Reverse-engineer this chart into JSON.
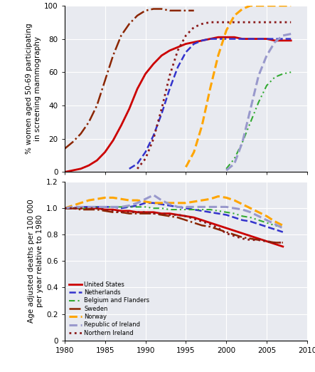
{
  "top_panel": {
    "ylabel": "% women aged 50-69 participating\nin screening mammography",
    "ylim": [
      0,
      100
    ],
    "xlim": [
      1980,
      2010
    ],
    "yticks": [
      0,
      20,
      40,
      60,
      80,
      100
    ],
    "bg_color": "#e8eaf0",
    "series": [
      {
        "name": "United States",
        "color": "#cc0000",
        "linestyle": "-",
        "linewidth": 2.0,
        "x": [
          1980,
          1981,
          1982,
          1983,
          1984,
          1985,
          1986,
          1987,
          1988,
          1989,
          1990,
          1991,
          1992,
          1993,
          1994,
          1995,
          1996,
          1997,
          1998,
          1999,
          2000,
          2001,
          2002,
          2003,
          2004,
          2005,
          2006,
          2007,
          2008
        ],
        "y": [
          0,
          1,
          2,
          4,
          7,
          12,
          19,
          28,
          38,
          50,
          59,
          65,
          70,
          73,
          75,
          77,
          78,
          79,
          80,
          81,
          81,
          81,
          80,
          80,
          80,
          80,
          79,
          79,
          79
        ]
      },
      {
        "name": "Netherlands",
        "color": "#3333cc",
        "linestyle": "--",
        "linewidth": 1.8,
        "x": [
          1988,
          1989,
          1990,
          1991,
          1992,
          1993,
          1994,
          1995,
          1996,
          1997,
          1998,
          1999,
          2000,
          2001,
          2002,
          2003,
          2004,
          2005,
          2006,
          2007,
          2008
        ],
        "y": [
          2,
          5,
          12,
          22,
          35,
          50,
          63,
          72,
          77,
          79,
          80,
          80,
          80,
          80,
          80,
          80,
          80,
          80,
          80,
          80,
          80
        ]
      },
      {
        "name": "Belgium and Flanders",
        "color": "#33aa33",
        "linestyle": "--",
        "linewidth": 1.5,
        "dashes": [
          4,
          2,
          1,
          2,
          1,
          2
        ],
        "x": [
          2000,
          2001,
          2002,
          2003,
          2004,
          2005,
          2006,
          2007,
          2008
        ],
        "y": [
          2,
          8,
          18,
          30,
          42,
          52,
          57,
          59,
          60
        ]
      },
      {
        "name": "Sweden",
        "color": "#8B2500",
        "linestyle": "-.",
        "linewidth": 1.8,
        "x": [
          1980,
          1981,
          1982,
          1983,
          1984,
          1985,
          1986,
          1987,
          1988,
          1989,
          1990,
          1991,
          1992,
          1993,
          1994,
          1995,
          1996
        ],
        "y": [
          14,
          18,
          23,
          30,
          40,
          55,
          70,
          82,
          89,
          94,
          97,
          98,
          98,
          97,
          97,
          97,
          97
        ]
      },
      {
        "name": "Norway",
        "color": "#FFA500",
        "linestyle": "--",
        "linewidth": 2.2,
        "x": [
          1995,
          1996,
          1997,
          1998,
          1999,
          2000,
          2001,
          2002,
          2003,
          2004,
          2005,
          2006,
          2007,
          2008
        ],
        "y": [
          3,
          12,
          28,
          50,
          70,
          85,
          94,
          98,
          100,
          100,
          100,
          100,
          100,
          100
        ]
      },
      {
        "name": "Republic of Ireland",
        "color": "#9999cc",
        "linestyle": "--",
        "linewidth": 2.2,
        "x": [
          2000,
          2001,
          2002,
          2003,
          2004,
          2005,
          2006,
          2007,
          2008
        ],
        "y": [
          1,
          5,
          18,
          38,
          58,
          70,
          78,
          82,
          83
        ]
      },
      {
        "name": "Northern Ireland",
        "color": "#8B1A1A",
        "linestyle": ":",
        "linewidth": 2.0,
        "x": [
          1989,
          1990,
          1991,
          1992,
          1993,
          1994,
          1995,
          1996,
          1997,
          1998,
          1999,
          2000,
          2001,
          2002,
          2003,
          2004,
          2005,
          2006,
          2007,
          2008
        ],
        "y": [
          2,
          8,
          20,
          38,
          58,
          73,
          82,
          87,
          89,
          90,
          90,
          90,
          90,
          90,
          90,
          90,
          90,
          90,
          90,
          90
        ]
      }
    ]
  },
  "bottom_panel": {
    "ylabel": "Age adjusted deaths per 100 000\nper year relative to 1980",
    "ylim": [
      0,
      1.2
    ],
    "xlim": [
      1980,
      2010
    ],
    "yticks": [
      0,
      0.2,
      0.4,
      0.6,
      0.8,
      1.0,
      1.2
    ],
    "xticks": [
      1980,
      1985,
      1990,
      1995,
      2000,
      2005,
      2010
    ],
    "bg_color": "#e8eaf0",
    "legend": {
      "entries": [
        {
          "name": "United States",
          "color": "#cc0000",
          "linestyle": "-",
          "linewidth": 2.0
        },
        {
          "name": "Netherlands",
          "color": "#3333cc",
          "linestyle": "--",
          "linewidth": 1.8
        },
        {
          "name": "Belgium and Flanders",
          "color": "#33aa33",
          "linestyle": "-.",
          "linewidth": 1.5,
          "dashes": [
            4,
            2,
            1,
            2,
            1,
            2
          ]
        },
        {
          "name": "Sweden",
          "color": "#8B2500",
          "linestyle": "-.",
          "linewidth": 1.8
        },
        {
          "name": "Norway",
          "color": "#FFA500",
          "linestyle": "--",
          "linewidth": 2.2
        },
        {
          "name": "Republic of Ireland",
          "color": "#9999cc",
          "linestyle": "--",
          "linewidth": 2.2
        },
        {
          "name": "Northern Ireland",
          "color": "#8B1A1A",
          "linestyle": ":",
          "linewidth": 2.0
        }
      ]
    },
    "series": [
      {
        "name": "United States",
        "color": "#cc0000",
        "linestyle": "-",
        "linewidth": 2.0,
        "x": [
          1980,
          1981,
          1982,
          1983,
          1984,
          1985,
          1986,
          1987,
          1988,
          1989,
          1990,
          1991,
          1992,
          1993,
          1994,
          1995,
          1996,
          1997,
          1998,
          1999,
          2000,
          2001,
          2002,
          2003,
          2004,
          2005,
          2006,
          2007
        ],
        "y": [
          1.0,
          1.0,
          1.0,
          1.0,
          1.0,
          0.99,
          0.99,
          0.98,
          0.98,
          0.97,
          0.97,
          0.97,
          0.96,
          0.96,
          0.95,
          0.94,
          0.93,
          0.91,
          0.89,
          0.87,
          0.85,
          0.83,
          0.81,
          0.79,
          0.77,
          0.75,
          0.73,
          0.71
        ]
      },
      {
        "name": "Netherlands",
        "color": "#3333cc",
        "linestyle": "--",
        "linewidth": 1.8,
        "x": [
          1980,
          1981,
          1982,
          1983,
          1984,
          1985,
          1986,
          1987,
          1988,
          1989,
          1990,
          1991,
          1992,
          1993,
          1994,
          1995,
          1996,
          1997,
          1998,
          1999,
          2000,
          2001,
          2002,
          2003,
          2004,
          2005,
          2006,
          2007
        ],
        "y": [
          1.0,
          1.0,
          1.01,
          1.01,
          1.01,
          1.01,
          1.01,
          1.0,
          1.01,
          1.02,
          1.04,
          1.04,
          1.03,
          1.02,
          1.01,
          1.0,
          0.99,
          0.98,
          0.97,
          0.96,
          0.95,
          0.93,
          0.91,
          0.9,
          0.88,
          0.86,
          0.84,
          0.82
        ]
      },
      {
        "name": "Belgium and Flanders",
        "color": "#33aa33",
        "linestyle": "-.",
        "linewidth": 1.5,
        "dashes": [
          4,
          2,
          1,
          2,
          1,
          2
        ],
        "x": [
          1980,
          1981,
          1982,
          1983,
          1984,
          1985,
          1986,
          1987,
          1988,
          1989,
          1990,
          1991,
          1992,
          1993,
          1994,
          1995,
          1996,
          1997,
          1998,
          1999,
          2000,
          2001,
          2002,
          2003,
          2004,
          2005,
          2006,
          2007
        ],
        "y": [
          1.0,
          1.0,
          1.0,
          1.0,
          1.01,
          1.01,
          1.01,
          1.01,
          1.01,
          1.01,
          1.01,
          1.0,
          1.0,
          0.99,
          0.99,
          0.99,
          0.99,
          0.99,
          0.99,
          0.98,
          0.97,
          0.96,
          0.94,
          0.93,
          0.91,
          0.89,
          0.87,
          0.86
        ]
      },
      {
        "name": "Sweden",
        "color": "#8B2500",
        "linestyle": "-.",
        "linewidth": 1.8,
        "x": [
          1980,
          1981,
          1982,
          1983,
          1984,
          1985,
          1986,
          1987,
          1988,
          1989,
          1990,
          1991,
          1992,
          1993,
          1994,
          1995,
          1996,
          1997,
          1998,
          1999,
          2000,
          2001,
          2002,
          2003,
          2004,
          2005,
          2006,
          2007
        ],
        "y": [
          1.0,
          1.0,
          0.99,
          0.99,
          0.99,
          0.98,
          0.97,
          0.97,
          0.96,
          0.96,
          0.96,
          0.96,
          0.95,
          0.94,
          0.93,
          0.91,
          0.89,
          0.87,
          0.86,
          0.84,
          0.82,
          0.8,
          0.78,
          0.77,
          0.76,
          0.75,
          0.74,
          0.74
        ]
      },
      {
        "name": "Norway",
        "color": "#FFA500",
        "linestyle": "--",
        "linewidth": 2.2,
        "x": [
          1980,
          1981,
          1982,
          1983,
          1984,
          1985,
          1986,
          1987,
          1988,
          1989,
          1990,
          1991,
          1992,
          1993,
          1994,
          1995,
          1996,
          1997,
          1998,
          1999,
          2000,
          2001,
          2002,
          2003,
          2004,
          2005,
          2006,
          2007
        ],
        "y": [
          1.0,
          1.02,
          1.04,
          1.06,
          1.07,
          1.08,
          1.08,
          1.07,
          1.06,
          1.06,
          1.05,
          1.04,
          1.04,
          1.04,
          1.04,
          1.04,
          1.05,
          1.06,
          1.07,
          1.09,
          1.08,
          1.06,
          1.03,
          1.0,
          0.97,
          0.94,
          0.9,
          0.87
        ]
      },
      {
        "name": "Republic of Ireland",
        "color": "#9999cc",
        "linestyle": "--",
        "linewidth": 2.2,
        "x": [
          1980,
          1981,
          1982,
          1983,
          1984,
          1985,
          1986,
          1987,
          1988,
          1989,
          1990,
          1991,
          1992,
          1993,
          1994,
          1995,
          1996,
          1997,
          1998,
          1999,
          2000,
          2001,
          2002,
          2003,
          2004,
          2005,
          2006,
          2007
        ],
        "y": [
          1.0,
          1.01,
          1.01,
          1.01,
          1.01,
          1.01,
          1.01,
          1.01,
          1.02,
          1.04,
          1.07,
          1.1,
          1.06,
          1.03,
          1.01,
          1.01,
          1.01,
          1.01,
          1.01,
          1.01,
          1.01,
          1.0,
          0.99,
          0.97,
          0.94,
          0.91,
          0.88,
          0.85
        ]
      },
      {
        "name": "Northern Ireland",
        "color": "#8B1A1A",
        "linestyle": ":",
        "linewidth": 2.0,
        "x": [
          1980,
          1981,
          1982,
          1983,
          1984,
          1985,
          1986,
          1987,
          1988,
          1989,
          1990,
          1991,
          1992,
          1993,
          1994,
          1995,
          1996,
          1997,
          1998,
          1999,
          2000,
          2001,
          2002,
          2003,
          2004,
          2005,
          2006,
          2007
        ],
        "y": [
          1.0,
          1.0,
          1.0,
          1.0,
          1.0,
          0.99,
          0.98,
          0.97,
          0.97,
          0.97,
          0.97,
          0.96,
          0.96,
          0.95,
          0.95,
          0.94,
          0.92,
          0.9,
          0.88,
          0.85,
          0.81,
          0.79,
          0.77,
          0.76,
          0.76,
          0.75,
          0.74,
          0.74
        ]
      }
    ]
  }
}
